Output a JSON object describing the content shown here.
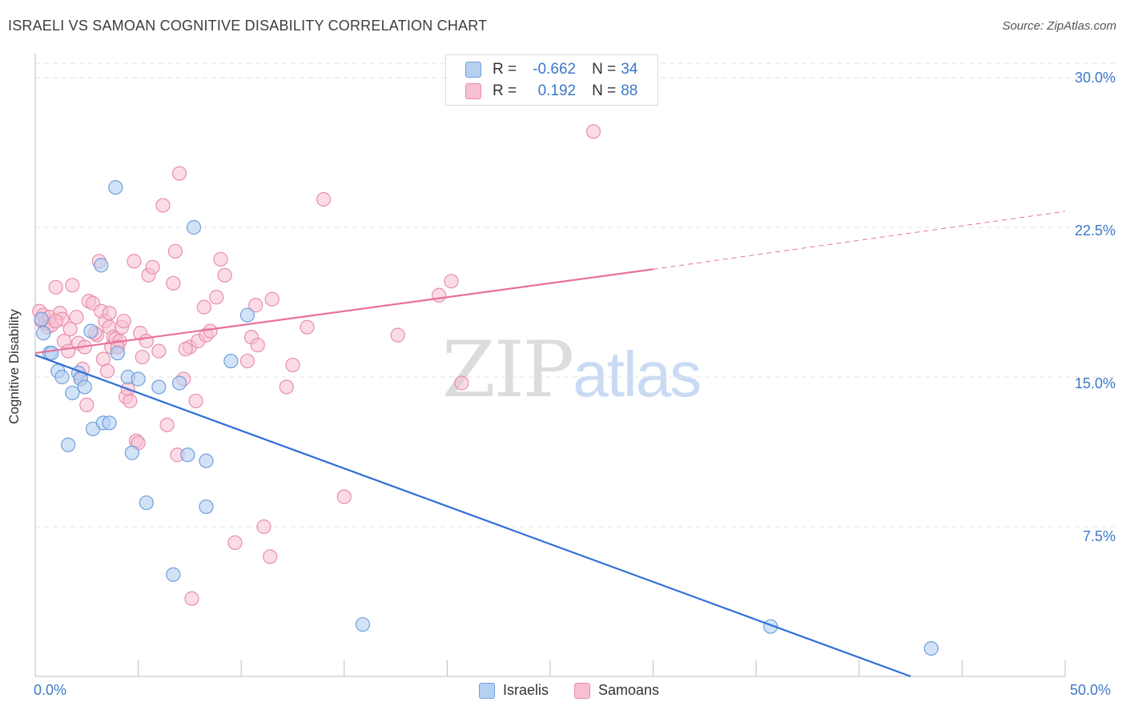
{
  "header": {
    "title": "ISRAELI VS SAMOAN COGNITIVE DISABILITY CORRELATION CHART",
    "source": "Source: ZipAtlas.com"
  },
  "legend": {
    "rows": [
      {
        "r_key": "R =",
        "r_value": "-0.662",
        "n_key": "N =",
        "n_value": "34"
      },
      {
        "r_key": "R =",
        "r_value": "0.192",
        "n_key": "N =",
        "n_value": "88"
      }
    ]
  },
  "bottom_legend": {
    "israelis": "Israelis",
    "samoans": "Samoans"
  },
  "watermark": {
    "zip": "ZIP",
    "atlas": "atlas"
  },
  "colors": {
    "israelis_fill": "#b6d0f2",
    "israelis_stroke": "#6f9fdc",
    "israelis_line": "#2f6fd6",
    "samoans_fill": "#f7c0d1",
    "samoans_stroke": "#e88eab",
    "samoans_line": "#e8709a",
    "tick_label": "#3b78c9"
  },
  "chart_data": {
    "type": "scatter",
    "title": "ISRAELI VS SAMOAN COGNITIVE DISABILITY CORRELATION CHART",
    "xlabel": "",
    "ylabel": "Cognitive Disability",
    "xlim": [
      0,
      50
    ],
    "ylim": [
      0,
      30
    ],
    "x_tick_labels": [
      "0.0%",
      "50.0%"
    ],
    "y_ticks": [
      7.5,
      15.0,
      22.5,
      30.0
    ],
    "y_tick_labels": [
      "7.5%",
      "15.0%",
      "22.5%",
      "30.0%"
    ],
    "grid": "horizontal dashed",
    "legend_position": "top-center",
    "series": [
      {
        "name": "Israelis",
        "r": -0.662,
        "n": 34,
        "trend": {
          "x": [
            0,
            42.5
          ],
          "y": [
            16.1,
            0
          ]
        },
        "points": [
          [
            0.3,
            17.9
          ],
          [
            0.4,
            17.2
          ],
          [
            0.7,
            16.2
          ],
          [
            0.8,
            16.2
          ],
          [
            1.1,
            15.3
          ],
          [
            1.3,
            15.0
          ],
          [
            1.6,
            11.6
          ],
          [
            1.8,
            14.2
          ],
          [
            2.1,
            15.2
          ],
          [
            2.2,
            14.9
          ],
          [
            2.4,
            14.5
          ],
          [
            2.7,
            17.3
          ],
          [
            2.8,
            12.4
          ],
          [
            3.2,
            20.6
          ],
          [
            3.3,
            12.7
          ],
          [
            3.6,
            12.7
          ],
          [
            3.9,
            24.5
          ],
          [
            4.0,
            16.2
          ],
          [
            4.5,
            15.0
          ],
          [
            4.7,
            11.2
          ],
          [
            5.0,
            14.9
          ],
          [
            5.4,
            8.7
          ],
          [
            6.0,
            14.5
          ],
          [
            6.7,
            5.1
          ],
          [
            7.0,
            14.7
          ],
          [
            7.4,
            11.1
          ],
          [
            7.7,
            22.5
          ],
          [
            8.3,
            10.8
          ],
          [
            8.3,
            8.5
          ],
          [
            9.5,
            15.8
          ],
          [
            10.3,
            18.1
          ],
          [
            15.9,
            2.6
          ],
          [
            35.7,
            2.5
          ],
          [
            43.5,
            1.4
          ]
        ]
      },
      {
        "name": "Samoans",
        "r": 0.192,
        "n": 88,
        "trend": {
          "x": [
            0,
            30
          ],
          "y": [
            16.2,
            20.4
          ]
        },
        "trend_extension": {
          "x": [
            30,
            50
          ],
          "y": [
            20.4,
            23.3
          ]
        },
        "points": [
          [
            0.2,
            18.3
          ],
          [
            0.3,
            17.8
          ],
          [
            0.4,
            18.1
          ],
          [
            0.5,
            17.7
          ],
          [
            0.6,
            17.5
          ],
          [
            0.7,
            18.0
          ],
          [
            0.8,
            17.6
          ],
          [
            1.0,
            19.5
          ],
          [
            1.2,
            18.2
          ],
          [
            1.3,
            17.9
          ],
          [
            1.4,
            16.8
          ],
          [
            1.6,
            16.3
          ],
          [
            1.7,
            17.4
          ],
          [
            1.8,
            19.6
          ],
          [
            2.0,
            18.0
          ],
          [
            2.1,
            16.7
          ],
          [
            2.2,
            15.0
          ],
          [
            2.3,
            15.4
          ],
          [
            2.4,
            16.5
          ],
          [
            2.5,
            13.6
          ],
          [
            2.6,
            18.8
          ],
          [
            2.8,
            18.7
          ],
          [
            3.0,
            17.1
          ],
          [
            3.1,
            20.8
          ],
          [
            3.2,
            18.3
          ],
          [
            3.3,
            15.9
          ],
          [
            3.4,
            17.8
          ],
          [
            3.5,
            15.3
          ],
          [
            3.6,
            17.5
          ],
          [
            3.7,
            16.5
          ],
          [
            3.8,
            17.0
          ],
          [
            3.9,
            16.9
          ],
          [
            4.0,
            16.5
          ],
          [
            4.1,
            16.8
          ],
          [
            4.2,
            17.5
          ],
          [
            4.3,
            17.8
          ],
          [
            4.4,
            14.0
          ],
          [
            4.5,
            14.4
          ],
          [
            4.6,
            13.8
          ],
          [
            4.8,
            20.8
          ],
          [
            4.9,
            11.8
          ],
          [
            5.0,
            11.7
          ],
          [
            5.1,
            17.2
          ],
          [
            5.2,
            16.0
          ],
          [
            5.5,
            20.1
          ],
          [
            5.7,
            20.5
          ],
          [
            6.0,
            16.3
          ],
          [
            6.2,
            23.6
          ],
          [
            6.4,
            12.6
          ],
          [
            6.7,
            19.7
          ],
          [
            6.8,
            21.3
          ],
          [
            6.9,
            11.1
          ],
          [
            7.0,
            25.2
          ],
          [
            7.2,
            14.9
          ],
          [
            7.5,
            16.5
          ],
          [
            7.6,
            3.9
          ],
          [
            7.8,
            13.8
          ],
          [
            7.9,
            16.8
          ],
          [
            8.2,
            18.5
          ],
          [
            8.3,
            17.1
          ],
          [
            8.5,
            17.3
          ],
          [
            8.8,
            19.0
          ],
          [
            9.0,
            20.9
          ],
          [
            9.2,
            20.1
          ],
          [
            10.3,
            15.8
          ],
          [
            10.5,
            17.0
          ],
          [
            10.7,
            18.6
          ],
          [
            10.8,
            16.6
          ],
          [
            11.1,
            7.5
          ],
          [
            11.4,
            6.0
          ],
          [
            11.5,
            18.9
          ],
          [
            12.2,
            14.5
          ],
          [
            12.5,
            15.6
          ],
          [
            13.2,
            17.5
          ],
          [
            14.0,
            23.9
          ],
          [
            15.0,
            9.0
          ],
          [
            17.6,
            17.1
          ],
          [
            19.6,
            19.1
          ],
          [
            20.2,
            19.8
          ],
          [
            20.7,
            14.7
          ],
          [
            27.1,
            27.3
          ],
          [
            9.7,
            6.7
          ],
          [
            4.0,
            16.5
          ],
          [
            1.0,
            17.8
          ],
          [
            2.9,
            17.2
          ],
          [
            5.4,
            16.8
          ],
          [
            7.3,
            16.4
          ],
          [
            3.6,
            18.2
          ]
        ]
      }
    ]
  }
}
